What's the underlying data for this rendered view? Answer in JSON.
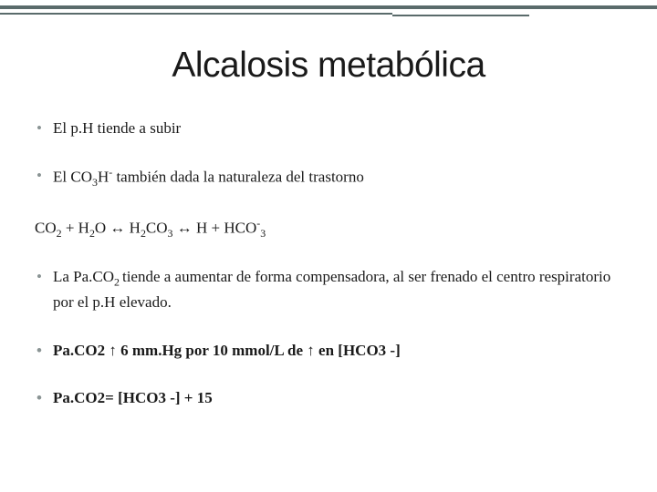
{
  "slide": {
    "title": "Alcalosis metabólica",
    "title_fontsize": 39,
    "title_color": "#1a1a1a",
    "body_fontsize": 17,
    "body_color": "#1a1a1a",
    "bullet_color": "#8a9494",
    "top_border_color": "#5a6b6b",
    "background_color": "#ffffff",
    "font_family_title": "Verdana",
    "font_family_body": "Georgia",
    "bullets": [
      {
        "text": "El p.H tiende a subir",
        "bold": false
      },
      {
        "text": "El CO₃H⁻ también dada la naturaleza del trastorno",
        "bold": false
      }
    ],
    "equation": "CO₂ + H₂O ↔ H₂CO₃ ↔ H + HCO⁻₃",
    "bullets2": [
      {
        "text": "La Pa.CO₂ tiende a aumentar de forma compensadora, al ser frenado el centro respiratorio por el p.H elevado.",
        "bold": false
      },
      {
        "text": "Pa.CO2 ↑ 6 mm.Hg por 10 mmol/L de ↑ en [HCO3 -]",
        "bold": true
      },
      {
        "text": "Pa.CO2= [HCO3 -] + 15",
        "bold": true
      }
    ],
    "b1_pre": "El CO",
    "b1_sub1": "3",
    "b1_mid1": "H",
    "b1_sup1": "-",
    "b1_post": " también dada la naturaleza del trastorno",
    "eq_t1": "CO",
    "eq_s1": "2",
    "eq_t2": " + H",
    "eq_s2": "2",
    "eq_t3": "O ↔ H",
    "eq_s3": "2",
    "eq_t4": "CO",
    "eq_s4": "3",
    "eq_t5": " ↔ H + HCO",
    "eq_sup5": "-",
    "eq_s5": "3",
    "b2_pre": "La Pa.CO",
    "b2_sub": "2 ",
    "b2_post": "tiende a aumentar de forma compensadora, al ser frenado el centro respiratorio por el p.H elevado."
  }
}
